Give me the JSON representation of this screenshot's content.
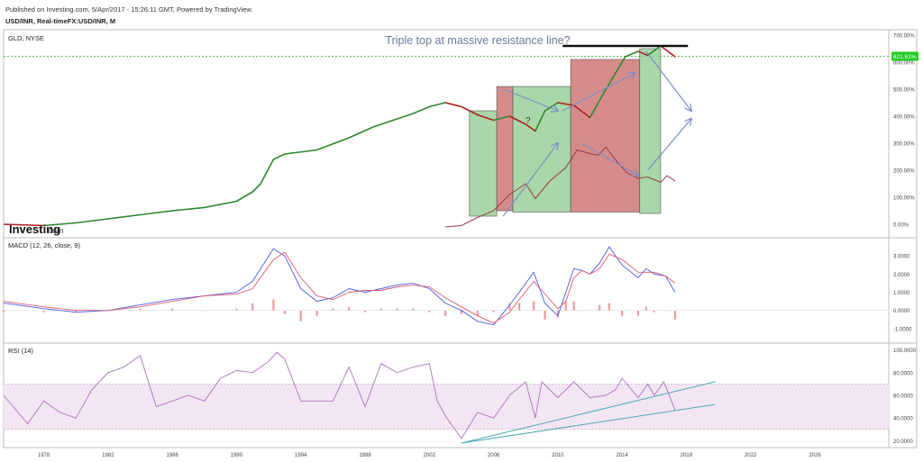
{
  "header": {
    "published_line": "Published on Investing.com, 5/Apr/2017 - 15:26:11 GMT, Powered by TradingView.",
    "symbol_line": "USD/INR, Real-timeFX:USD/INR, M"
  },
  "watermark": {
    "brand": "Investing",
    "suffix": ".com"
  },
  "colors": {
    "price_up": "#2e8b2e",
    "price_down": "#b22222",
    "price_line": "#1a1a1a",
    "overlay": "#9a3a4a",
    "green_box": "#8cc98c",
    "red_box": "#c86464",
    "arrow": "#7b8fc6",
    "macd": "#4a5ae8",
    "signal": "#e05a6a",
    "hist": "#f19a9a",
    "rsi": "#b070c0",
    "rsi_band": "#f3e6f3",
    "trend": "#4aaab4",
    "current_badge": "#22cc22",
    "resistance": "#111111",
    "level_line": "#22aa22"
  },
  "chart_data": [
    {
      "panel": "price",
      "type": "line",
      "title": "GLD, NYSE",
      "annotation": "Triple top at massive resistance line?",
      "question_mark": "?",
      "current_value_label": "621.61%",
      "y_unit": "%",
      "ylim": [
        -50,
        720
      ],
      "y_ticks": [
        0,
        100,
        200,
        300,
        400,
        500,
        600,
        700
      ],
      "y_tick_labels": [
        "0.00%",
        "100.00%",
        "200.00%",
        "300.00%",
        "400.00%",
        "500.00%",
        "600.00%",
        "700.00%"
      ],
      "resistance_level": 660,
      "horizontal_level": 621.61,
      "series": [
        {
          "x": [
            1975.5,
            1978,
            1980,
            1982,
            1984,
            1986,
            1988,
            1990,
            1991,
            1991.5,
            1992.3,
            1993,
            1995,
            1997,
            1998.5,
            2000,
            2001,
            2002,
            2003,
            2004,
            2005,
            2006,
            2007,
            2008,
            2008.6,
            2009.2,
            2010,
            2011,
            2012,
            2013,
            2013.6,
            2014.2,
            2015,
            2015.6,
            2016.4,
            2017.3
          ],
          "values": [
            0,
            -5,
            5,
            20,
            35,
            50,
            62,
            85,
            120,
            150,
            240,
            260,
            275,
            320,
            360,
            390,
            410,
            435,
            450,
            435,
            405,
            385,
            400,
            370,
            345,
            420,
            450,
            440,
            395,
            500,
            560,
            620,
            640,
            625,
            660,
            620
          ]
        },
        {
          "name": "",
          "x": [
            2003,
            2004,
            2005,
            2006,
            2007,
            2008,
            2008.6,
            2009.5,
            2010.5,
            2011.2,
            2011.8,
            2012.5,
            2013,
            2013.7,
            2014.3,
            2015,
            2015.6,
            2016.4,
            2016.8,
            2017.3
          ],
          "values": [
            -10,
            -5,
            25,
            50,
            110,
            150,
            95,
            160,
            210,
            275,
            265,
            255,
            285,
            230,
            190,
            170,
            175,
            155,
            180,
            160
          ]
        }
      ],
      "boxes": [
        {
          "color": "green",
          "x0": 2004.5,
          "x1": 2006.2,
          "y0": 30,
          "y1": 420
        },
        {
          "color": "red",
          "x0": 2006.2,
          "x1": 2007.2,
          "y0": 50,
          "y1": 510
        },
        {
          "color": "green",
          "x0": 2007.2,
          "x1": 2010.8,
          "y0": 45,
          "y1": 510
        },
        {
          "color": "red",
          "x0": 2010.8,
          "x1": 2015.1,
          "y0": 45,
          "y1": 610
        },
        {
          "color": "green",
          "x0": 2015.1,
          "x1": 2016.4,
          "y0": 40,
          "y1": 650
        }
      ]
    },
    {
      "panel": "macd",
      "type": "line",
      "title": "MACD (12, 26, close, 9)",
      "ylim": [
        -1.8,
        4.0
      ],
      "y_ticks": [
        3,
        2,
        1,
        0,
        -1
      ],
      "y_tick_labels": [
        "3.0000",
        "2.0000",
        "1.0000",
        "0.0000",
        "-1.0000"
      ],
      "x": [
        1975.5,
        1978,
        1980,
        1982,
        1984,
        1986,
        1988,
        1990,
        1991,
        1992.3,
        1993,
        1994,
        1995,
        1996,
        1997,
        1998,
        1999,
        2000,
        2001,
        2002,
        2003,
        2004,
        2005,
        2006,
        2007,
        2007.6,
        2008.5,
        2009.2,
        2010,
        2010.5,
        2011,
        2011.5,
        2012,
        2012.6,
        2013.2,
        2014,
        2015,
        2015.5,
        2016,
        2016.7,
        2017.3
      ],
      "series": [
        {
          "name": "MACD",
          "values": [
            0.4,
            0.1,
            -0.1,
            0.0,
            0.3,
            0.6,
            0.8,
            1.0,
            1.6,
            3.4,
            3.0,
            1.2,
            0.5,
            0.7,
            1.2,
            1.0,
            1.2,
            1.4,
            1.5,
            1.2,
            0.4,
            0.0,
            -0.6,
            -0.8,
            0.3,
            1.0,
            2.1,
            0.4,
            -0.3,
            1.0,
            2.3,
            2.2,
            2.0,
            2.6,
            3.5,
            2.5,
            1.8,
            2.3,
            2.0,
            1.9,
            1.0
          ]
        },
        {
          "name": "Signal",
          "values": [
            0.5,
            0.2,
            0.0,
            0.0,
            0.2,
            0.5,
            0.8,
            0.9,
            1.2,
            2.8,
            3.2,
            1.8,
            0.8,
            0.6,
            1.0,
            1.1,
            1.1,
            1.3,
            1.4,
            1.3,
            0.7,
            0.2,
            -0.3,
            -0.7,
            -0.1,
            0.6,
            1.6,
            0.9,
            0.1,
            0.5,
            1.8,
            2.2,
            2.0,
            2.3,
            3.1,
            2.8,
            2.1,
            2.1,
            2.1,
            1.9,
            1.5
          ]
        },
        {
          "name": "Histogram",
          "values": [
            -0.1,
            -0.1,
            -0.1,
            0.0,
            0.1,
            0.1,
            0.0,
            0.1,
            0.4,
            0.6,
            -0.2,
            -0.6,
            -0.3,
            0.1,
            0.2,
            -0.1,
            0.1,
            0.1,
            0.1,
            -0.1,
            -0.3,
            -0.2,
            -0.3,
            -0.1,
            0.4,
            0.4,
            0.5,
            -0.5,
            -0.4,
            0.5,
            0.5,
            0.0,
            0.0,
            0.3,
            0.4,
            -0.3,
            -0.3,
            0.2,
            -0.1,
            0.0,
            -0.5
          ]
        }
      ]
    },
    {
      "panel": "rsi",
      "type": "line",
      "title": "RSI (14)",
      "ylim": [
        14,
        106
      ],
      "y_ticks": [
        100,
        80,
        60,
        40,
        20
      ],
      "y_tick_labels": [
        "100.0000",
        "80.0000",
        "60.0000",
        "40.0000",
        "20.0000"
      ],
      "band": [
        30,
        70
      ],
      "x": [
        1975.5,
        1977,
        1978,
        1979,
        1980,
        1981,
        1982,
        1983,
        1984,
        1985,
        1986,
        1987,
        1988,
        1989,
        1990,
        1991,
        1992,
        1992.5,
        1993,
        1994,
        1995,
        1996,
        1997,
        1998,
        1999,
        2000,
        2001,
        2002,
        2002.5,
        2003,
        2004,
        2005,
        2006,
        2007,
        2008,
        2008.6,
        2009,
        2010,
        2011,
        2012,
        2013,
        2013.6,
        2014,
        2015,
        2015.6,
        2016,
        2016.6,
        2017.3
      ],
      "values": [
        60,
        35,
        55,
        45,
        40,
        65,
        80,
        85,
        95,
        50,
        55,
        60,
        55,
        75,
        82,
        80,
        90,
        98,
        92,
        55,
        55,
        55,
        85,
        50,
        88,
        80,
        85,
        88,
        55,
        42,
        22,
        45,
        40,
        60,
        72,
        40,
        72,
        58,
        72,
        58,
        60,
        65,
        75,
        58,
        70,
        60,
        72,
        47
      ]
    }
  ],
  "x_axis": {
    "ticks": [
      1978,
      1982,
      1986,
      1990,
      1994,
      1998,
      2002,
      2006,
      2010,
      2014,
      2018,
      2022,
      2026
    ],
    "labels": [
      "1978",
      "1982",
      "1986",
      "1990",
      "1994",
      "1998",
      "2002",
      "2006",
      "2010",
      "2014",
      "2018",
      "2022",
      "2026"
    ],
    "range": [
      1975.5,
      2030.6
    ]
  }
}
